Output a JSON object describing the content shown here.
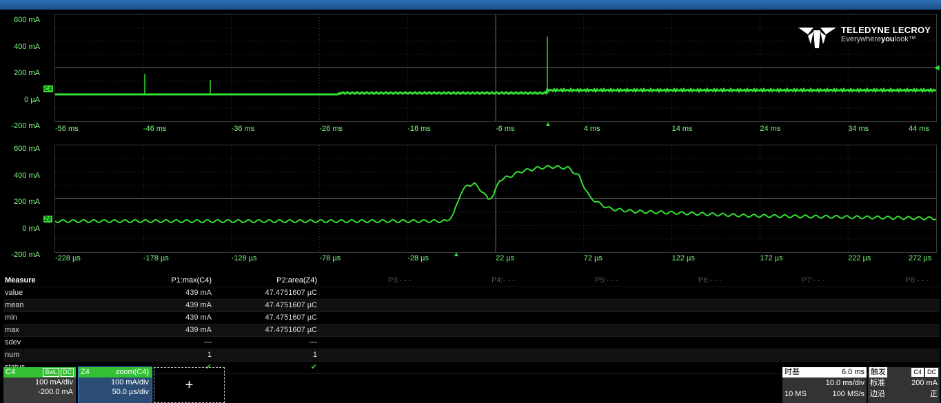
{
  "app": {
    "brand": "TELEDYNE LECROY",
    "tagline_pre": "Everywhere",
    "tagline_bold": "you",
    "tagline_post": "look"
  },
  "top_trace": {
    "y_labels": [
      "600 mA",
      "400 mA",
      "200 mA",
      "0 µA",
      "-200 mA"
    ],
    "x_labels": [
      "-56 ms",
      "-46 ms",
      "-36 ms",
      "-26 ms",
      "-16 ms",
      "-6 ms",
      "4 ms",
      "14 ms",
      "24 ms",
      "34 ms",
      "44 ms"
    ],
    "channel_tag": "C4"
  },
  "bottom_trace": {
    "y_labels": [
      "600 mA",
      "400 mA",
      "200 mA",
      "0 mA",
      "-200 mA"
    ],
    "x_labels": [
      "-228 µs",
      "-178 µs",
      "-128 µs",
      "-78 µs",
      "-28 µs",
      "22 µs",
      "72 µs",
      "122 µs",
      "172 µs",
      "222 µs",
      "272 µs"
    ],
    "channel_tag": "Z4"
  },
  "measure": {
    "header": "Measure",
    "columns": [
      "P1:max(C4)",
      "P2:area(Z4)",
      "P3:- - -",
      "P4:- - -",
      "P5:- - -",
      "P6:- - -",
      "P7:- - -",
      "P8:- - -"
    ],
    "rows": [
      {
        "label": "value",
        "p1": "439 mA",
        "p2": "47.4751607 µC"
      },
      {
        "label": "mean",
        "p1": "439 mA",
        "p2": "47.4751607 µC"
      },
      {
        "label": "min",
        "p1": "439 mA",
        "p2": "47.4751607 µC"
      },
      {
        "label": "max",
        "p1": "439 mA",
        "p2": "47.4751607 µC"
      },
      {
        "label": "sdev",
        "p1": "---",
        "p2": "---"
      },
      {
        "label": "num",
        "p1": "1",
        "p2": "1"
      },
      {
        "label": "status",
        "p1": "✔",
        "p2": "✔"
      }
    ]
  },
  "channels": {
    "c4": {
      "name": "C4",
      "bw": "BwL",
      "coupling": "DC",
      "vdiv": "100 mA/div",
      "offset": "-200.0 mA"
    },
    "z4": {
      "name": "Z4",
      "source": "zoom(C4)",
      "vdiv": "100 mA/div",
      "tdiv": "50.0 µs/div"
    },
    "add": "+"
  },
  "timebase": {
    "label": "时基",
    "delay": "6.0 ms",
    "tdiv": "10.0 ms/div",
    "samples": "10 MS",
    "rate": "100 MS/s"
  },
  "trigger": {
    "label": "触发",
    "src": "C4",
    "coupling": "DC",
    "mode": "标准",
    "level": "200 mA",
    "type": "边沿",
    "slope": "正"
  },
  "colors": {
    "trace": "#33e033",
    "label": "#7cff7c",
    "header": "#2e6fb2"
  }
}
